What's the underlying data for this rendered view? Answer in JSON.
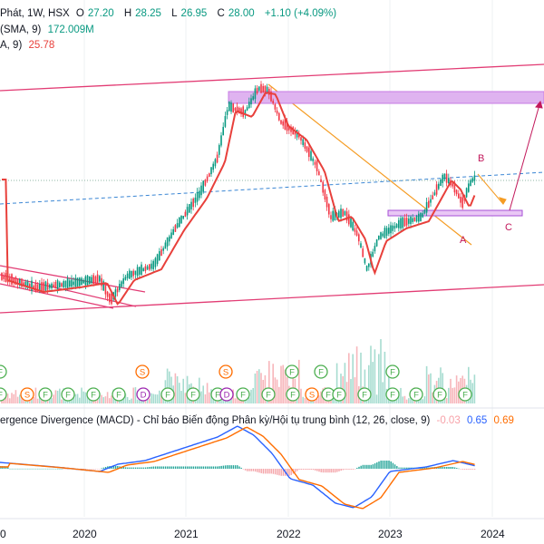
{
  "header": {
    "symbol_line": {
      "name": "Phát, 1W, HSX",
      "o_label": "O",
      "o": "27.20",
      "h_label": "H",
      "h": "28.25",
      "l_label": "L",
      "l": "26.95",
      "c_label": "C",
      "c": "28.00",
      "change": "+1.10 (+4.09%)"
    },
    "vol_line": {
      "label": "(SMA, 9)",
      "value": "172.009M"
    },
    "ma_line": {
      "label": "A, 9)",
      "value": "25.78"
    }
  },
  "wave_labels": {
    "a": "A",
    "b": "B",
    "c": "C"
  },
  "indicator": {
    "title": "ergence Divergence (MACD) - Chỉ báo Biến động Phân kỳ/Hội tụ trung bình (12, 26, close, 9)",
    "hist": "-0.03",
    "macd": "0.65",
    "signal": "0.69"
  },
  "x_axis": {
    "ticks": [
      "0",
      "2020",
      "2021",
      "2022",
      "2023",
      "2024"
    ]
  },
  "event_markers": {
    "row1": [
      "F",
      "S",
      "S",
      "F",
      "F",
      "F"
    ],
    "row2": [
      "F",
      "S",
      "F",
      "F",
      "F",
      "F",
      "D",
      "F",
      "F",
      "F",
      "D",
      "F",
      "F",
      "F",
      "S",
      "F",
      "F",
      "F",
      "F",
      "F",
      "F",
      "F"
    ]
  },
  "colors": {
    "up": "#089981",
    "down": "#f23645",
    "ma": "#e8403b",
    "channel": "#e23c74",
    "trend": "#f59c23",
    "zone": "#c77be4",
    "wave": "#c2185b",
    "macd": "#2962ff",
    "signal": "#ff6d00",
    "dividend": "#9c27b0",
    "earnings": "#4caf50",
    "split": "#ff6d00"
  }
}
